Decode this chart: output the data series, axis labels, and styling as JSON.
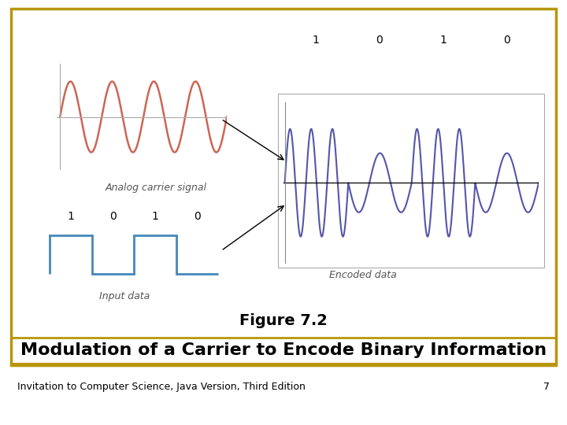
{
  "background_color": "#ffffff",
  "border_color": "#b8960c",
  "title_line1": "Figure 7.2",
  "title_line2": "Modulation of a Carrier to Encode Binary Information",
  "footer_text": "Invitation to Computer Science, Java Version, Third Edition",
  "footer_number": "7",
  "carrier_color": "#cc6655",
  "encoded_color": "#5555aa",
  "digital_color": "#4488bb",
  "carrier_label": "Analog carrier signal",
  "encoded_label": "Encoded data",
  "digital_label": "Input data",
  "bit_labels": [
    "1",
    "0",
    "1",
    "0"
  ],
  "title_fontsize": 14,
  "subtitle_fontsize": 16,
  "footer_fontsize": 9,
  "label_fontsize": 9,
  "bit_fontsize": 10
}
